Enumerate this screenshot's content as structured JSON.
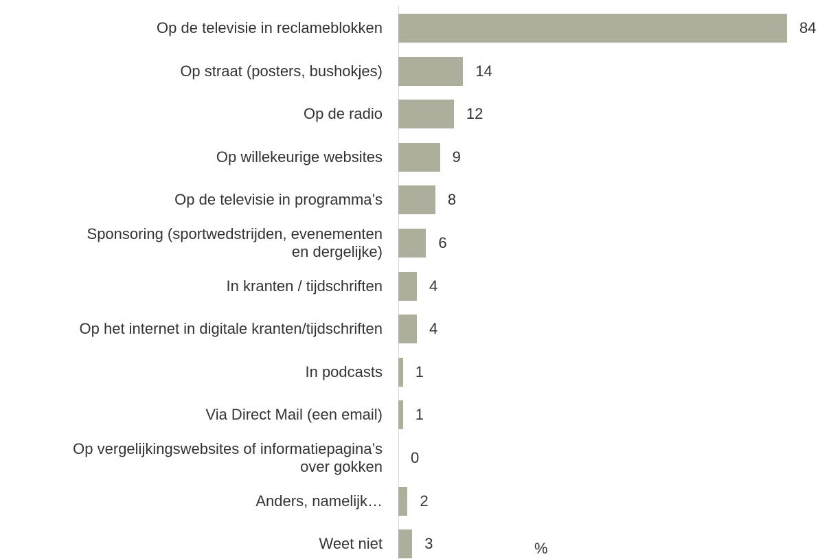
{
  "chart_data": {
    "type": "bar",
    "orientation": "horizontal",
    "categories": [
      "Op de televisie in reclameblokken",
      "Op straat (posters, bushokjes)",
      "Op de radio",
      "Op willekeurige websites",
      "Op de televisie in programma’s",
      "Sponsoring (sportwedstrijden, evenementen\nen dergelijke)",
      "In kranten / tijdschriften",
      "Op het internet in digitale kranten/tijdschriften",
      "In podcasts",
      "Via Direct Mail (een email)",
      "Op vergelijkingswebsites of informatiepagina’s\nover gokken",
      "Anders, namelijk…",
      "Weet niet"
    ],
    "values": [
      84,
      14,
      12,
      9,
      8,
      6,
      4,
      4,
      1,
      1,
      0,
      2,
      3
    ],
    "color": "#aeae9c",
    "xlim": [
      0,
      84
    ],
    "x_label": "%"
  }
}
